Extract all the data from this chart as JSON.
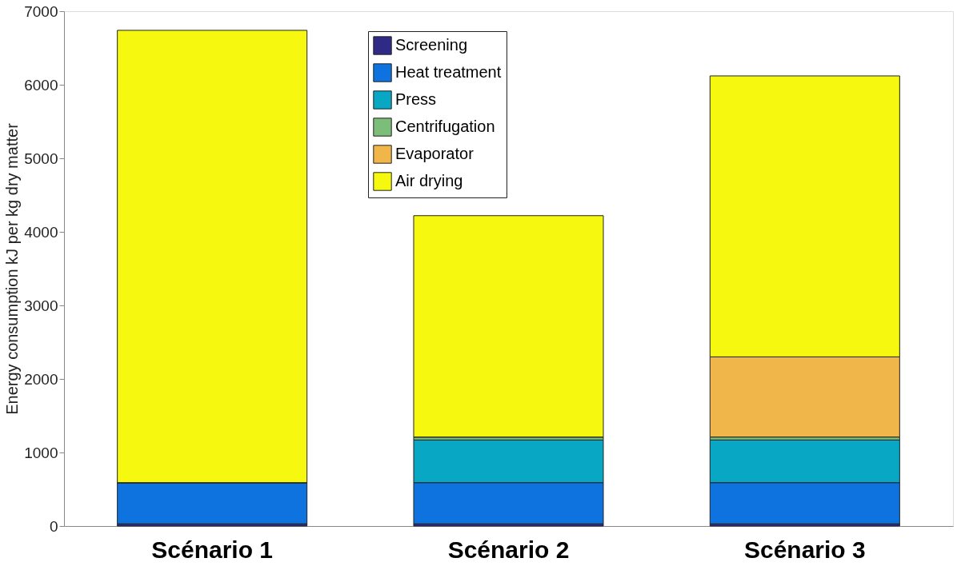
{
  "chart_data": {
    "type": "bar",
    "stacked": true,
    "ylabel": "Energy consumption kJ per kg dry matter",
    "categories": [
      "Scénario 1",
      "Scénario 2",
      "Scénario 3"
    ],
    "series": [
      {
        "name": "Screening",
        "color": "#2e2a85",
        "values": [
          30,
          30,
          30
        ]
      },
      {
        "name": "Heat treatment",
        "color": "#0e73de",
        "values": [
          560,
          560,
          560
        ]
      },
      {
        "name": "Press",
        "color": "#08a8c4",
        "values": [
          0,
          580,
          580
        ]
      },
      {
        "name": "Centrifugation",
        "color": "#7cbd7a",
        "values": [
          0,
          40,
          40
        ]
      },
      {
        "name": "Evaporator",
        "color": "#f0b64a",
        "values": [
          0,
          0,
          1090
        ]
      },
      {
        "name": "Air drying",
        "color": "#f6f90f",
        "values": [
          6150,
          3010,
          3820
        ]
      }
    ],
    "ylim": [
      0,
      7000
    ],
    "yticks": [
      0,
      1000,
      2000,
      3000,
      4000,
      5000,
      6000,
      7000
    ],
    "grid": false,
    "legend": "top"
  }
}
